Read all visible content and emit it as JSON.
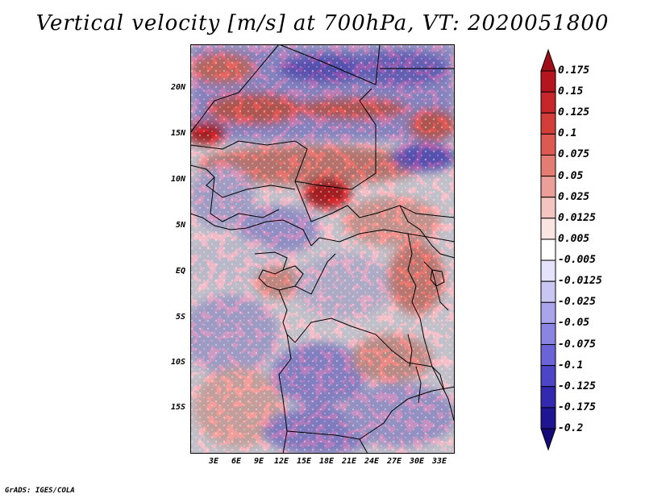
{
  "title": "Vertical velocity [m/s] at 700hPa, VT: 2020051800",
  "credit": "GrADS: IGES/COLA",
  "y_ticks": [
    "20N",
    "15N",
    "10N",
    "5N",
    "EQ",
    "5S",
    "10S",
    "15S"
  ],
  "x_ticks": [
    "3E",
    "6E",
    "9E",
    "12E",
    "15E",
    "18E",
    "21E",
    "24E",
    "27E",
    "30E",
    "33E"
  ],
  "colorbar": {
    "labels": [
      "0.175",
      "0.15",
      "0.125",
      "0.1",
      "0.075",
      "0.05",
      "0.025",
      "0.0125",
      "0.005",
      "-0.005",
      "-0.0125",
      "-0.025",
      "-0.05",
      "-0.075",
      "-0.1",
      "-0.125",
      "-0.175",
      "-0.2"
    ],
    "colors": [
      "#9e0d18",
      "#b5151e",
      "#c7262a",
      "#d33e3a",
      "#dc5a52",
      "#e47c73",
      "#ec9f98",
      "#f4c4c0",
      "#fbe5e3",
      "#ffffff",
      "#e4e3fb",
      "#c9c6f4",
      "#a9a4ec",
      "#8a84e3",
      "#6a64d8",
      "#4c45c8",
      "#3229b0",
      "#1f1593",
      "#140a78"
    ]
  },
  "chart_data": {
    "type": "heatmap",
    "title": "Vertical velocity [m/s] at 700hPa, VT: 2020051800",
    "variable": "Vertical velocity",
    "units": "m/s",
    "level": "700hPa",
    "valid_time": "2020051800",
    "lon_range": [
      0,
      34.5
    ],
    "lat_range": [
      -19.5,
      24.5
    ],
    "x_tick_labels": [
      "3E",
      "6E",
      "9E",
      "12E",
      "15E",
      "18E",
      "21E",
      "24E",
      "27E",
      "30E",
      "33E"
    ],
    "y_tick_labels": [
      "20N",
      "15N",
      "10N",
      "5N",
      "EQ",
      "5S",
      "10S",
      "15S"
    ],
    "colorbar_levels": [
      0.175,
      0.15,
      0.125,
      0.1,
      0.075,
      0.05,
      0.025,
      0.0125,
      0.005,
      -0.005,
      -0.0125,
      -0.025,
      -0.05,
      -0.075,
      -0.1,
      -0.125,
      -0.175,
      -0.2
    ]
  }
}
